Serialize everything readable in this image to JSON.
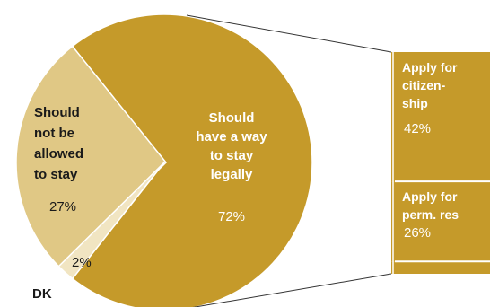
{
  "chart_data": {
    "type": "pie",
    "slices": [
      {
        "label_lines": [
          "Should",
          "have a way",
          "to stay",
          "legally"
        ],
        "value": 72,
        "value_label": "72%",
        "color": "#C59A2A"
      },
      {
        "label_lines": [
          "Should",
          "not be",
          "allowed",
          "to stay"
        ],
        "value": 27,
        "value_label": "27%",
        "color": "#E0C885"
      },
      {
        "label_lines": [
          "DK"
        ],
        "value": 2,
        "value_label": "2%",
        "color": "#F1E5C2"
      }
    ],
    "breakdown": {
      "of_slice": "Should have a way to stay legally",
      "segments": [
        {
          "label_lines": [
            "Apply for",
            "citizen-",
            "ship"
          ],
          "value": 42,
          "value_label": "42%",
          "color": "#C59A2A"
        },
        {
          "label_lines": [
            "Apply for",
            "perm. res"
          ],
          "value": 26,
          "value_label": "26%",
          "color": "#C59A2A"
        },
        {
          "label_lines": [],
          "value": 4,
          "value_label": "",
          "color": "#C59A2A"
        }
      ]
    }
  }
}
